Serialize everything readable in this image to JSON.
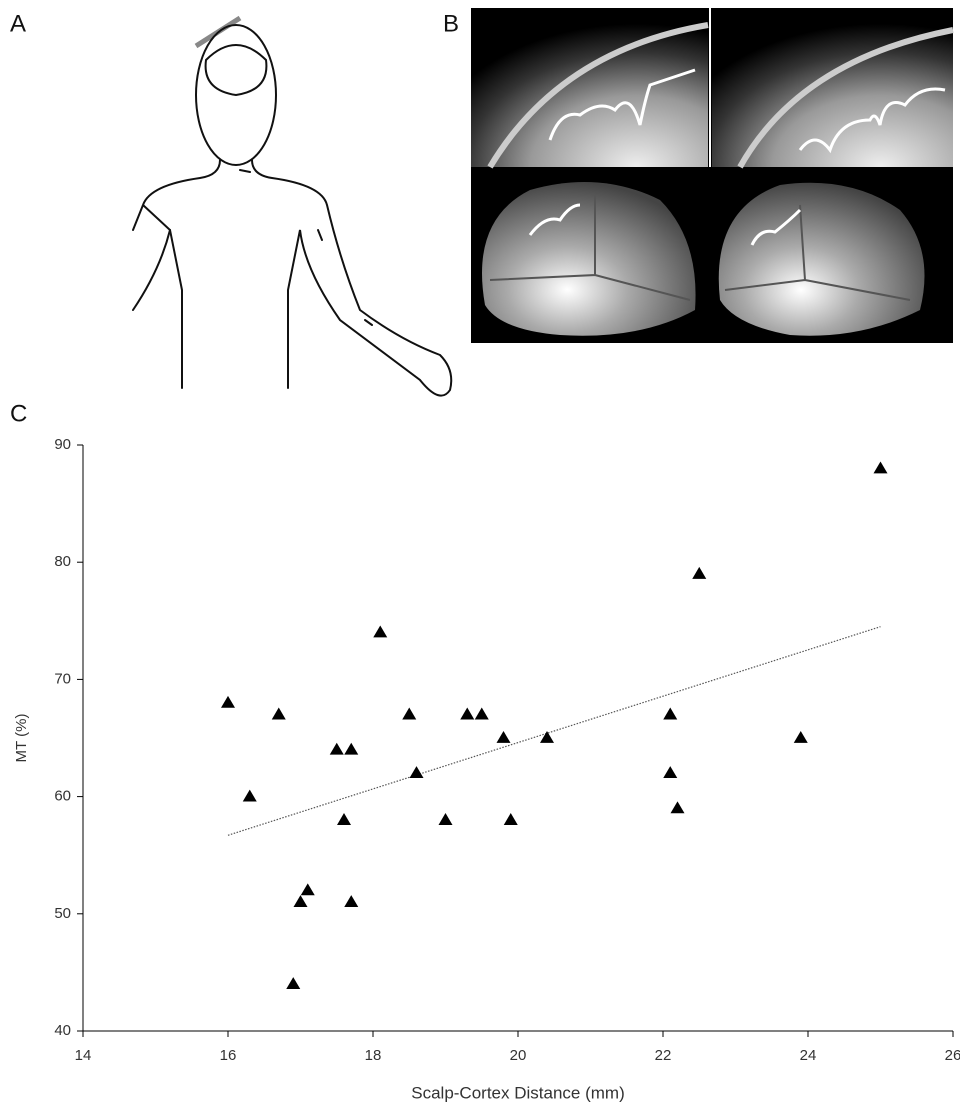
{
  "panels": {
    "a": "A",
    "b": "B",
    "c": "C"
  },
  "chart_data": {
    "type": "scatter",
    "x_label": "Scalp-Cortex Distance (mm)",
    "y_label": "MT (%)",
    "x": [
      16.0,
      16.3,
      16.7,
      16.9,
      17.0,
      17.1,
      17.5,
      17.6,
      17.7,
      17.7,
      18.1,
      18.5,
      18.6,
      19.0,
      19.3,
      19.5,
      19.8,
      19.9,
      20.4,
      22.1,
      22.1,
      22.2,
      22.5,
      23.9,
      25.0
    ],
    "values": [
      68,
      60,
      67,
      44,
      51,
      52,
      64,
      58,
      64,
      51,
      74,
      67,
      62,
      58,
      67,
      67,
      65,
      58,
      65,
      67,
      62,
      59,
      79,
      65,
      88
    ],
    "color": "#000000",
    "trendline": {
      "x": [
        16,
        25
      ],
      "values": [
        56.7,
        74.5
      ],
      "color": "#555555"
    },
    "xlim": [
      14,
      26
    ],
    "xticks": [
      14,
      16,
      18,
      20,
      22,
      24,
      26
    ],
    "ylim": [
      40,
      90
    ],
    "yticks": [
      40,
      50,
      60,
      70,
      80,
      90
    ]
  }
}
